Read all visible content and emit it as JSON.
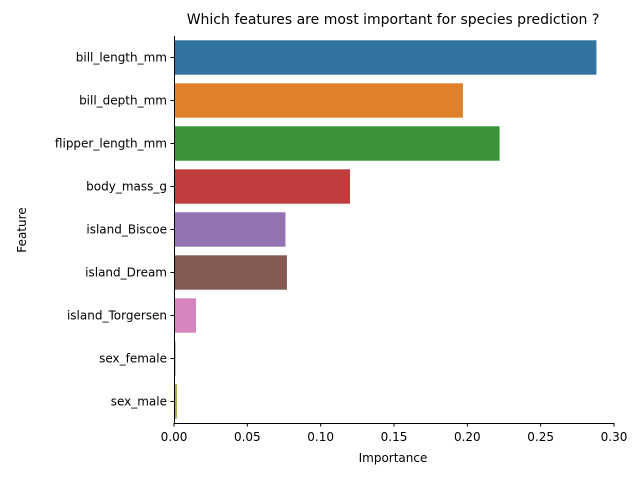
{
  "chart_data": {
    "type": "bar",
    "orientation": "horizontal",
    "title": "Which features are most important for species prediction ?",
    "xlabel": "Importance",
    "ylabel": "Feature",
    "xlim": [
      0,
      0.3
    ],
    "xticks": [
      "0.00",
      "0.05",
      "0.10",
      "0.15",
      "0.20",
      "0.25",
      "0.30"
    ],
    "grid": false,
    "legend": "none",
    "categories": [
      "bill_length_mm",
      "bill_depth_mm",
      "flipper_length_mm",
      "body_mass_g",
      "island_Biscoe",
      "island_Dream",
      "island_Torgersen",
      "sex_female",
      "sex_male"
    ],
    "values": [
      0.288,
      0.197,
      0.222,
      0.12,
      0.076,
      0.077,
      0.015,
      0.001,
      0.002
    ],
    "colors": [
      "#3274a1",
      "#e1812c",
      "#3a923a",
      "#c03d3e",
      "#9372b2",
      "#845b53",
      "#d684bd",
      "#7f7f7f",
      "#a9aa35"
    ]
  }
}
